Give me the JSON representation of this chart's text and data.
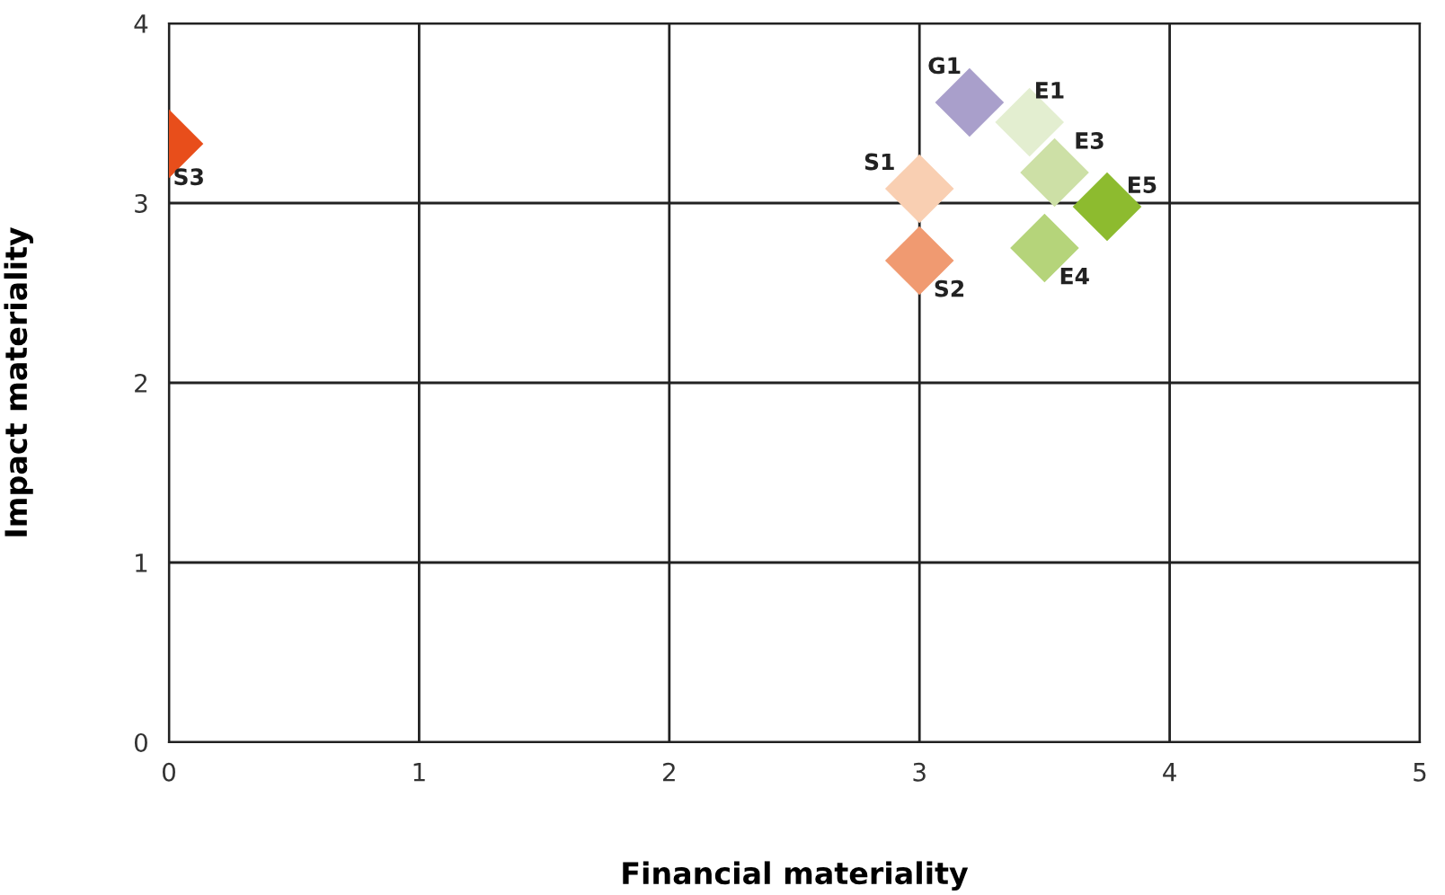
{
  "chart_data": {
    "type": "scatter",
    "xlabel": "Financial materiality",
    "ylabel": "Impact materiality",
    "xlim": [
      0,
      5
    ],
    "xticks": [
      0,
      1,
      2,
      3,
      4,
      5
    ],
    "ylim": [
      0,
      4
    ],
    "yticks": [
      0,
      1,
      2,
      3,
      4
    ],
    "grid": true,
    "marker": "diamond",
    "legend": false,
    "series": [
      {
        "name": "S3",
        "color": "#e84e1b",
        "x": [
          0
        ],
        "values": [
          3.33
        ]
      },
      {
        "name": "G1",
        "color": "#a99fcb",
        "x": [
          3.2
        ],
        "values": [
          3.56
        ]
      },
      {
        "name": "E1",
        "color": "#e3eed0",
        "x": [
          3.44
        ],
        "values": [
          3.45
        ]
      },
      {
        "name": "E3",
        "color": "#cde0a6",
        "x": [
          3.54
        ],
        "values": [
          3.17
        ]
      },
      {
        "name": "E5",
        "color": "#8dbb2f",
        "x": [
          3.75
        ],
        "values": [
          2.98
        ]
      },
      {
        "name": "S1",
        "color": "#f9cfb2",
        "x": [
          3.0
        ],
        "values": [
          3.08
        ]
      },
      {
        "name": "S2",
        "color": "#f09a71",
        "x": [
          3.0
        ],
        "values": [
          2.68
        ]
      },
      {
        "name": "E4",
        "color": "#b5d47a",
        "x": [
          3.5
        ],
        "values": [
          2.75
        ]
      }
    ]
  }
}
